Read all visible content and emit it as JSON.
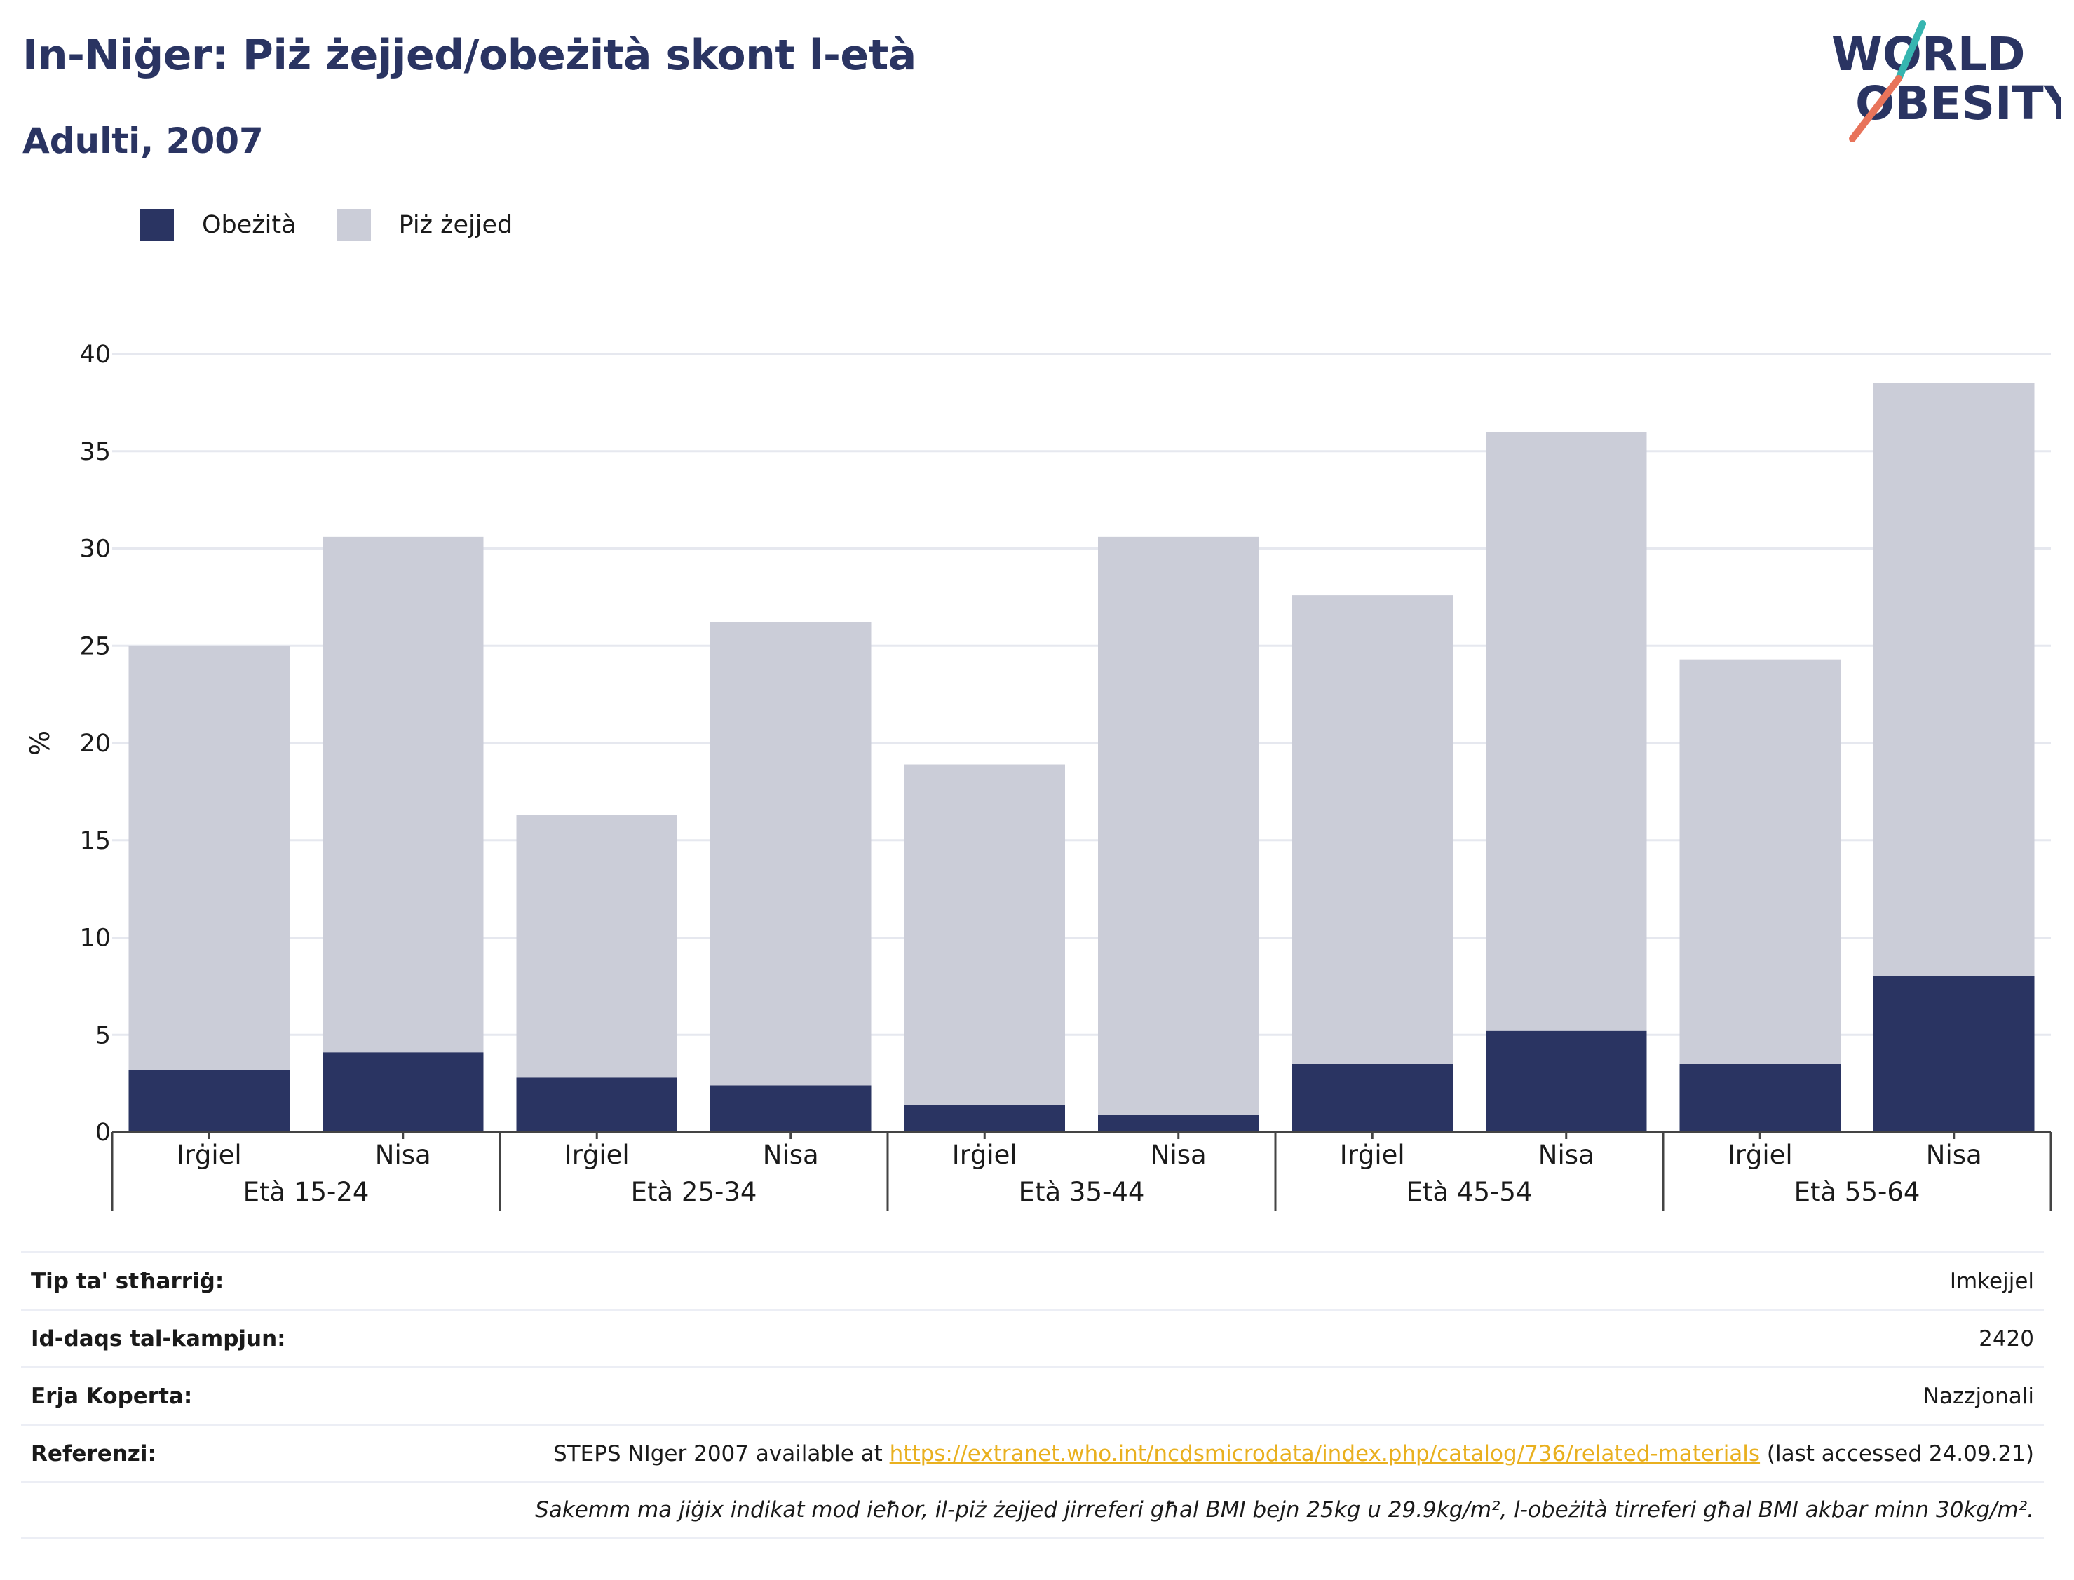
{
  "header": {
    "title": "In-Niġer: Piż żejjed/obeżità skont l-età",
    "subtitle": "Adulti, 2007"
  },
  "logo": {
    "line1": "WORLD",
    "line2": "OBESITY"
  },
  "colors": {
    "obesity": "#2a3462",
    "overweight": "#cbcdd8",
    "title": "#2a3462",
    "link": "#e9b01f"
  },
  "chart_data": {
    "type": "bar",
    "stacked": true,
    "ylabel": "%",
    "ylim": [
      0,
      40
    ],
    "yticks": [
      0,
      5,
      10,
      15,
      20,
      25,
      30,
      35,
      40
    ],
    "grid": true,
    "legend_position": "top-left",
    "groups": [
      "Età 15-24",
      "Età 25-34",
      "Età 35-44",
      "Età 45-54",
      "Età 55-64"
    ],
    "subcategories": [
      "Irġiel",
      "Nisa"
    ],
    "series": [
      {
        "name": "Obeżità",
        "values": [
          3.2,
          4.1,
          2.8,
          2.4,
          1.4,
          0.9,
          3.5,
          5.2,
          3.5,
          8.0
        ]
      },
      {
        "name": "Piż żejjed",
        "values": [
          21.8,
          26.5,
          13.5,
          23.8,
          17.5,
          29.7,
          24.1,
          30.8,
          20.8,
          30.5
        ]
      }
    ]
  },
  "info": {
    "rows": [
      {
        "label": "Tip ta' stħarriġ:",
        "value": "Imkejjel"
      },
      {
        "label": "Id-daqs tal-kampjun:",
        "value": "2420"
      },
      {
        "label": "Erja Koperta:",
        "value": "Nazzjonali"
      }
    ],
    "reference": {
      "label": "Referenzi:",
      "prefix": "STEPS NIger 2007 available at ",
      "link": "https://extranet.who.int/ncdsmicrodata/index.php/catalog/736/related-materials",
      "suffix": " (last accessed 24.09.21)"
    },
    "note": "Sakemm ma jiġix indikat mod ieħor, il-piż żejjed jirreferi għal BMI bejn 25kg u 29.9kg/m², l-obeżità tirreferi għal BMI akbar minn 30kg/m²."
  }
}
